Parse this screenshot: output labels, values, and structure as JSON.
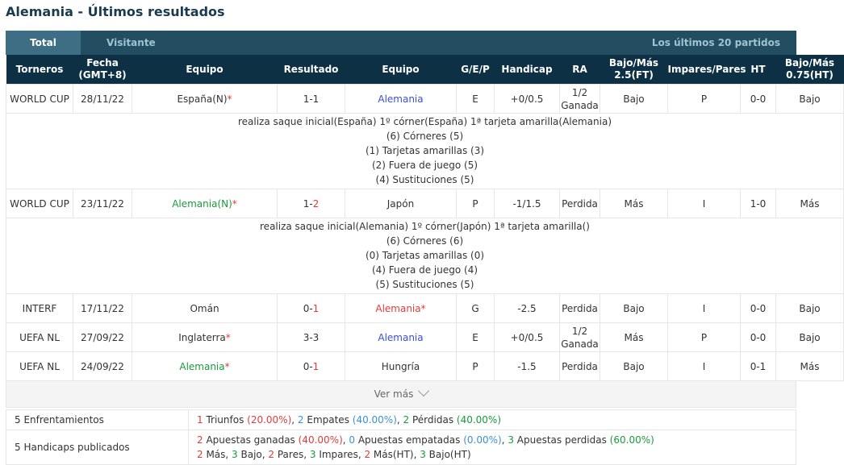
{
  "page_title": "Alemania - Últimos resultados",
  "tabs": {
    "total": "Total",
    "visitor": "Visitante",
    "last": "Los últimos 20 partidos"
  },
  "headers": {
    "torneos": "Torneros",
    "fecha_1": "Fecha",
    "fecha_2": "(GMT+8)",
    "equipo_home": "Equipo",
    "resultado": "Resultado",
    "equipo_away": "Equipo",
    "gep": "G/E/P",
    "handicap": "Handicap",
    "ra": "RA",
    "bm_1": "Bajo/Más",
    "bm_2": "2.5(FT)",
    "ip": "Impares/Pares",
    "ht": "HT",
    "bmht_1": "Bajo/Más",
    "bmht_2": "0.75(HT)"
  },
  "rows": [
    {
      "torneo": "WORLD CUP",
      "fecha": "28/11/22",
      "home": "España(N)",
      "home_star": "*",
      "res_a": "1-1",
      "res_b": "",
      "away": "Alemania",
      "away_star": "",
      "gep": "E",
      "handicap": "+0/0.5",
      "ra_1": "1/2",
      "ra_2": "Ganada",
      "bm": "Bajo",
      "ip": "P",
      "ht": "0-0",
      "bmht": "Bajo",
      "details": [
        "realiza saque inicial(España)  1º córner(España)  1ª tarjeta amarilla(Alemania)",
        "(6) Córneres (5)",
        "(1) Tarjetas amarillas (3)",
        "(2) Fuera de juego (5)",
        "(4) Sustituciones (5)"
      ]
    },
    {
      "torneo": "WORLD CUP",
      "fecha": "23/11/22",
      "home": "Alemania(N)",
      "home_star": "*",
      "res_a": "1-",
      "res_b": "2",
      "away": "Japón",
      "away_star": "",
      "gep": "P",
      "handicap": "-1/1.5",
      "ra_1": "Perdida",
      "ra_2": "",
      "bm": "Más",
      "ip": "I",
      "ht": "1-0",
      "bmht": "Más",
      "details": [
        "realiza saque inicial(Alemania)  1º córner(Japón)  1ª tarjeta amarilla()",
        "(6) Córneres (6)",
        "(0) Tarjetas amarillas (0)",
        "(4) Fuera de juego (4)",
        "(5) Sustituciones (5)"
      ]
    },
    {
      "torneo": "INTERF",
      "fecha": "17/11/22",
      "home": "Omán",
      "home_star": "",
      "res_a": "0-",
      "res_b": "1",
      "away": "Alemania",
      "away_star": "*",
      "gep": "G",
      "handicap": "-2.5",
      "ra_1": "Perdida",
      "ra_2": "",
      "bm": "Bajo",
      "ip": "I",
      "ht": "0-0",
      "bmht": "Bajo"
    },
    {
      "torneo": "UEFA NL",
      "fecha": "27/09/22",
      "home": "Inglaterra",
      "home_star": "*",
      "res_a": "3-3",
      "res_b": "",
      "away": "Alemania",
      "away_star": "",
      "gep": "E",
      "handicap": "+0/0.5",
      "ra_1": "1/2",
      "ra_2": "Ganada",
      "bm": "Más",
      "ip": "P",
      "ht": "0-0",
      "bmht": "Bajo"
    },
    {
      "torneo": "UEFA NL",
      "fecha": "24/09/22",
      "home": "Alemania",
      "home_star": "*",
      "res_a": "0-",
      "res_b": "1",
      "away": "Hungría",
      "away_star": "",
      "gep": "P",
      "handicap": "-1.5",
      "ra_1": "Perdida",
      "ra_2": "",
      "bm": "Bajo",
      "ip": "I",
      "ht": "0-1",
      "bmht": "Más"
    }
  ],
  "more": "Ver más",
  "summary": {
    "enf_label": "5 Enfrentamientos",
    "enf": {
      "w_n": "1",
      "w_t": " Triunfos ",
      "w_p": "(20.00%)",
      "sep1": ", ",
      "d_n": "2",
      "d_t": " Empates ",
      "d_p": "(40.00%)",
      "sep2": ", ",
      "l_n": "2",
      "l_t": " Pérdidas ",
      "l_p": "(40.00%)"
    },
    "hcp_label": "5 Handicaps publicados",
    "hcp1": {
      "w_n": "2",
      "w_t": " Apuestas ganadas ",
      "w_p": "(40.00%)",
      "sep1": ", ",
      "d_n": "0",
      "d_t": " Apuestas empatadas ",
      "d_p": "(0.00%)",
      "sep2": ", ",
      "l_n": "3",
      "l_t": " Apuestas perdidas ",
      "l_p": "(60.00%)"
    },
    "hcp2": {
      "a_n": "2",
      "a_t": " Más, ",
      "b_n": "3",
      "b_t": " Bajo, ",
      "c_n": "2",
      "c_t": " Pares, ",
      "d_n": "3",
      "d_t": " Impares, ",
      "e_n": "2",
      "e_t": " Más(HT), ",
      "f_n": "3",
      "f_t": " Bajo(HT)"
    }
  },
  "colors": {
    "header_bg": "#0d3044",
    "tabbar_bg": "#234e62",
    "active_tab": "#3d6e84",
    "red": "#e23b3b",
    "green": "#1a9a3a",
    "blue": "#3a4fd6"
  }
}
